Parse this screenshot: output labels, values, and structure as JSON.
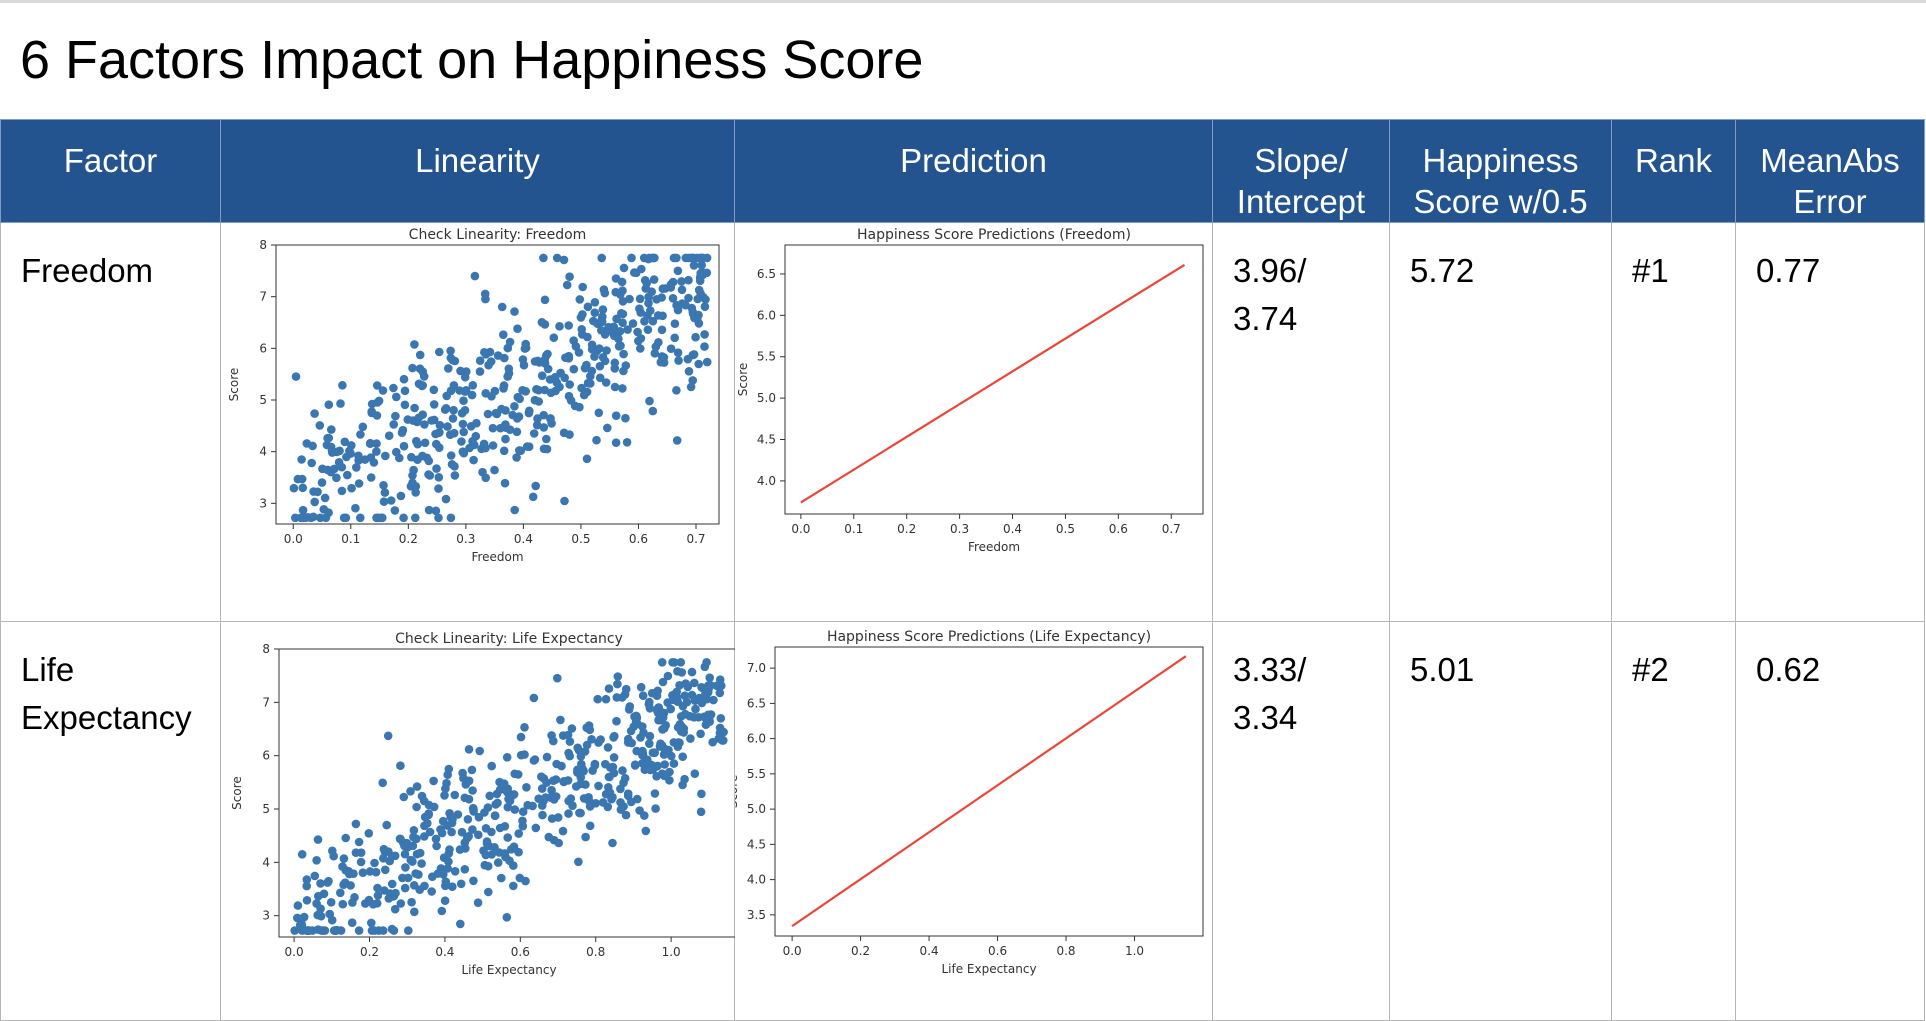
{
  "title": "6 Factors Impact on Happiness Score",
  "header": {
    "factor": "Factor",
    "linearity": "Linearity",
    "prediction": "Prediction",
    "slope": "Slope/\nIntercept",
    "happiness": "Happiness\nScore w/0.5",
    "rank": "Rank",
    "mae": "MeanAbs\nError"
  },
  "rows": [
    {
      "factor": "Freedom",
      "slope": "3.96/\n3.74",
      "happiness": "5.72",
      "rank": "#1",
      "mae": "0.77"
    },
    {
      "factor": "Life\nExpectancy",
      "slope": "3.33/\n3.34",
      "happiness": "5.01",
      "rank": "#2",
      "mae": "0.62"
    }
  ],
  "colors": {
    "header_bg": "#23548f",
    "scatter": "#3a76b0",
    "line": "#e8473b"
  },
  "chart_data": [
    {
      "id": "lin-freedom",
      "type": "scatter",
      "title": "Check Linearity: Freedom",
      "xlabel": "Freedom",
      "ylabel": "Score",
      "xlim": [
        -0.03,
        0.74
      ],
      "ylim": [
        2.6,
        8.0
      ],
      "xticks": [
        0.0,
        0.1,
        0.2,
        0.3,
        0.4,
        0.5,
        0.6,
        0.7
      ],
      "yticks": [
        3,
        4,
        5,
        6,
        7,
        8
      ],
      "x_min": 0.0,
      "x_max": 0.72,
      "model": {
        "slope": 5.0,
        "intercept": 3.3,
        "noise": 0.9
      },
      "n_points": 520
    },
    {
      "id": "pred-freedom",
      "type": "line",
      "title": "Happiness Score Predictions (Freedom)",
      "xlabel": "Freedom",
      "ylabel": "Score",
      "xlim": [
        -0.03,
        0.76
      ],
      "ylim": [
        3.6,
        6.85
      ],
      "xticks": [
        0.0,
        0.1,
        0.2,
        0.3,
        0.4,
        0.5,
        0.6,
        0.7
      ],
      "yticks": [
        4.0,
        4.5,
        5.0,
        5.5,
        6.0,
        6.5
      ],
      "x": [
        0.0,
        0.725
      ],
      "y": [
        3.74,
        6.61
      ]
    },
    {
      "id": "lin-life",
      "type": "scatter",
      "title": "Check Linearity: Life Expectancy",
      "xlabel": "Life Expectancy",
      "ylabel": "Score",
      "xlim": [
        -0.04,
        1.18
      ],
      "ylim": [
        2.6,
        8.0
      ],
      "xticks": [
        0.0,
        0.2,
        0.4,
        0.6,
        0.8,
        1.0
      ],
      "yticks": [
        3,
        4,
        5,
        6,
        7,
        8
      ],
      "x_min": 0.0,
      "x_max": 1.14,
      "model": {
        "slope": 3.6,
        "intercept": 2.9,
        "noise": 0.7
      },
      "n_points": 560
    },
    {
      "id": "pred-life",
      "type": "line",
      "title": "Happiness Score Predictions (Life Expectancy)",
      "xlabel": "Life Expectancy",
      "ylabel": "Score",
      "xlim": [
        -0.05,
        1.2
      ],
      "ylim": [
        3.2,
        7.3
      ],
      "xticks": [
        0.0,
        0.2,
        0.4,
        0.6,
        0.8,
        1.0
      ],
      "yticks": [
        3.5,
        4.0,
        4.5,
        5.0,
        5.5,
        6.0,
        6.5,
        7.0
      ],
      "x": [
        0.0,
        1.15
      ],
      "y": [
        3.34,
        7.17
      ]
    }
  ]
}
